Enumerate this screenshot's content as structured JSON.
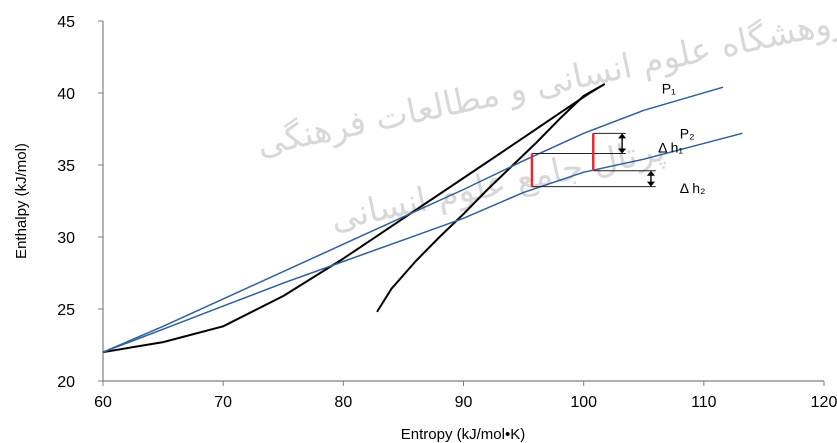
{
  "chart_data": {
    "type": "line",
    "title": "",
    "xlabel": "Entropy (kJ/mol•K)",
    "ylabel": "Enthalpy (kJ/mol)",
    "xlim": [
      60,
      120
    ],
    "ylim": [
      20,
      45
    ],
    "xticks": [
      60,
      70,
      80,
      90,
      100,
      110,
      120
    ],
    "yticks": [
      20,
      25,
      30,
      35,
      40,
      45
    ],
    "grid": false,
    "legend": "none",
    "series": [
      {
        "color": "#000000",
        "points": [
          [
            82.8,
            24.8
          ],
          [
            84,
            26.4
          ],
          [
            86,
            28.3
          ],
          [
            88,
            30.0
          ],
          [
            90,
            31.6
          ],
          [
            92,
            33.3
          ],
          [
            94,
            34.9
          ],
          [
            96,
            36.5
          ],
          [
            98,
            38.2
          ],
          [
            100,
            39.8
          ],
          [
            101.7,
            40.6
          ],
          [
            100.5,
            40.0
          ],
          [
            98,
            38.6
          ],
          [
            95,
            36.9
          ],
          [
            90,
            34.1
          ],
          [
            85,
            31.3
          ],
          [
            80,
            28.5
          ],
          [
            75,
            25.9
          ],
          [
            70,
            23.8
          ],
          [
            65,
            22.7
          ],
          [
            60,
            22.0
          ]
        ]
      },
      {
        "name": "P₁",
        "color": "#2e5f9e",
        "points": [
          [
            60,
            22.0
          ],
          [
            65,
            23.8
          ],
          [
            70,
            25.7
          ],
          [
            75,
            27.6
          ],
          [
            80,
            29.5
          ],
          [
            85,
            31.4
          ],
          [
            90,
            33.3
          ],
          [
            95,
            35.3
          ],
          [
            100,
            37.2
          ],
          [
            105,
            38.8
          ],
          [
            111.6,
            40.4
          ]
        ]
      },
      {
        "name": "P₂",
        "color": "#2e5f9e",
        "points": [
          [
            60,
            22.0
          ],
          [
            65,
            23.6
          ],
          [
            70,
            25.2
          ],
          [
            75,
            26.8
          ],
          [
            80,
            28.3
          ],
          [
            85,
            29.8
          ],
          [
            90,
            31.3
          ],
          [
            95,
            33.1
          ],
          [
            100,
            34.5
          ],
          [
            105,
            35.4
          ],
          [
            113.2,
            37.2
          ]
        ]
      }
    ],
    "annotations": {
      "labels": [
        {
          "text": "P₁",
          "x": 106.5,
          "y": 40.3
        },
        {
          "text": "P₂",
          "x": 108,
          "y": 37.2
        },
        {
          "text": "Δ h₁",
          "x": 106.2,
          "y": 36.2
        },
        {
          "text": "Δ h₂",
          "x": 108,
          "y": 33.4
        }
      ],
      "red_segments": [
        {
          "x": 95.7,
          "y1": 33.5,
          "y2": 35.8,
          "color": "#e8282c"
        },
        {
          "x": 100.8,
          "y1": 34.6,
          "y2": 37.2,
          "color": "#e8282c"
        }
      ],
      "dimension_lines": [
        {
          "x1": 100.8,
          "x2": 103.5,
          "y": 37.2
        },
        {
          "x1": 95.7,
          "x2": 103.5,
          "y": 35.8
        },
        {
          "x1": 100.8,
          "x2": 106,
          "y": 34.6
        },
        {
          "x1": 95.7,
          "x2": 106,
          "y": 33.5
        }
      ],
      "arrows": [
        {
          "x": 103.2,
          "y1": 35.8,
          "y2": 37.2
        },
        {
          "x": 105.6,
          "y1": 33.5,
          "y2": 34.6
        }
      ]
    },
    "watermark": {
      "lines": [
        "پژوهشگاه علوم انسانی و مطالعات فرهنگی",
        "پرتال جامع علوم انسانی"
      ],
      "color": "#d8d8d8"
    }
  }
}
